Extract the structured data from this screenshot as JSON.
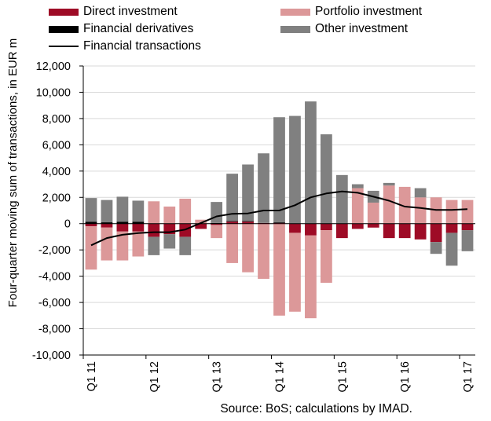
{
  "legend": {
    "direct": "Direct investment",
    "portfolio": "Portfolio investment",
    "derivatives": "Financial derivatives",
    "other": "Other investment",
    "transactions": "Financial transactions"
  },
  "source": "Source: BoS; calculations by IMAD.",
  "chart_data": {
    "type": "bar",
    "stacked": true,
    "title": "",
    "ylabel": "Four-quarter moving sum of transactions, in EUR m",
    "xlabel": "",
    "ylim": [
      -10000,
      12000
    ],
    "yticks": [
      -10000,
      -8000,
      -6000,
      -4000,
      -2000,
      0,
      2000,
      4000,
      6000,
      8000,
      10000,
      12000
    ],
    "ytick_labels": [
      "-10,000",
      "-8,000",
      "-6,000",
      "-4,000",
      "-2,000",
      "0",
      "2,000",
      "4,000",
      "6,000",
      "8,000",
      "10,000",
      "12,000"
    ],
    "grid": "horizontal",
    "legend_position": "top",
    "categories": [
      "Q1 11",
      "Q2 11",
      "Q3 11",
      "Q4 11",
      "Q1 12",
      "Q2 12",
      "Q3 12",
      "Q4 12",
      "Q1 13",
      "Q2 13",
      "Q3 13",
      "Q4 13",
      "Q1 14",
      "Q2 14",
      "Q3 14",
      "Q4 14",
      "Q1 15",
      "Q2 15",
      "Q3 15",
      "Q4 15",
      "Q1 16",
      "Q2 16",
      "Q3 16",
      "Q4 16",
      "Q1 17"
    ],
    "x_tick_labels": [
      "Q1 11",
      "Q1 12",
      "Q1 13",
      "Q1 14",
      "Q1 15",
      "Q1 16",
      "Q1 17"
    ],
    "x_tick_label_indices": [
      0,
      4,
      8,
      12,
      16,
      20,
      24
    ],
    "colors": {
      "direct": "#9e0b26",
      "portfolio": "#dc9899",
      "derivatives": "#000000",
      "other": "#808080",
      "transactions": "#000000"
    },
    "series": [
      {
        "name": "Direct investment",
        "key": "direct",
        "kind": "bar",
        "values": [
          -200,
          -300,
          -600,
          -600,
          -1000,
          -800,
          -1000,
          -400,
          -100,
          150,
          150,
          50,
          50,
          -700,
          -900,
          -500,
          -1100,
          -400,
          -300,
          -1100,
          -1100,
          -1200,
          -1400,
          -700,
          -500
        ]
      },
      {
        "name": "Portfolio investment",
        "key": "portfolio",
        "kind": "bar",
        "values": [
          -3300,
          -2500,
          -2200,
          -1900,
          1700,
          1300,
          1900,
          300,
          -1000,
          -3000,
          -3700,
          -4200,
          -7000,
          -6000,
          -6300,
          -4000,
          0,
          2700,
          1600,
          2900,
          2800,
          2000,
          2000,
          1800,
          1800
        ]
      },
      {
        "name": "Financial derivatives",
        "key": "derivatives",
        "kind": "bar",
        "values": [
          150,
          100,
          150,
          150,
          0,
          0,
          0,
          0,
          50,
          50,
          50,
          0,
          50,
          0,
          0,
          0,
          0,
          0,
          0,
          0,
          0,
          0,
          0,
          0,
          0
        ]
      },
      {
        "name": "Other investment",
        "key": "other",
        "kind": "bar",
        "values": [
          1800,
          1700,
          1900,
          1600,
          -1400,
          -1100,
          -1400,
          0,
          1600,
          3600,
          4300,
          5300,
          8000,
          8200,
          9300,
          6800,
          3700,
          300,
          900,
          200,
          0,
          700,
          -900,
          -2500,
          -1600
        ]
      },
      {
        "name": "Financial transactions",
        "key": "transactions",
        "kind": "line",
        "values": [
          -1650,
          -1100,
          -850,
          -720,
          -650,
          -650,
          -450,
          50,
          550,
          750,
          780,
          1000,
          1000,
          1400,
          2000,
          2300,
          2450,
          2350,
          2050,
          1750,
          1300,
          1200,
          1050,
          1050,
          1100
        ]
      }
    ]
  }
}
